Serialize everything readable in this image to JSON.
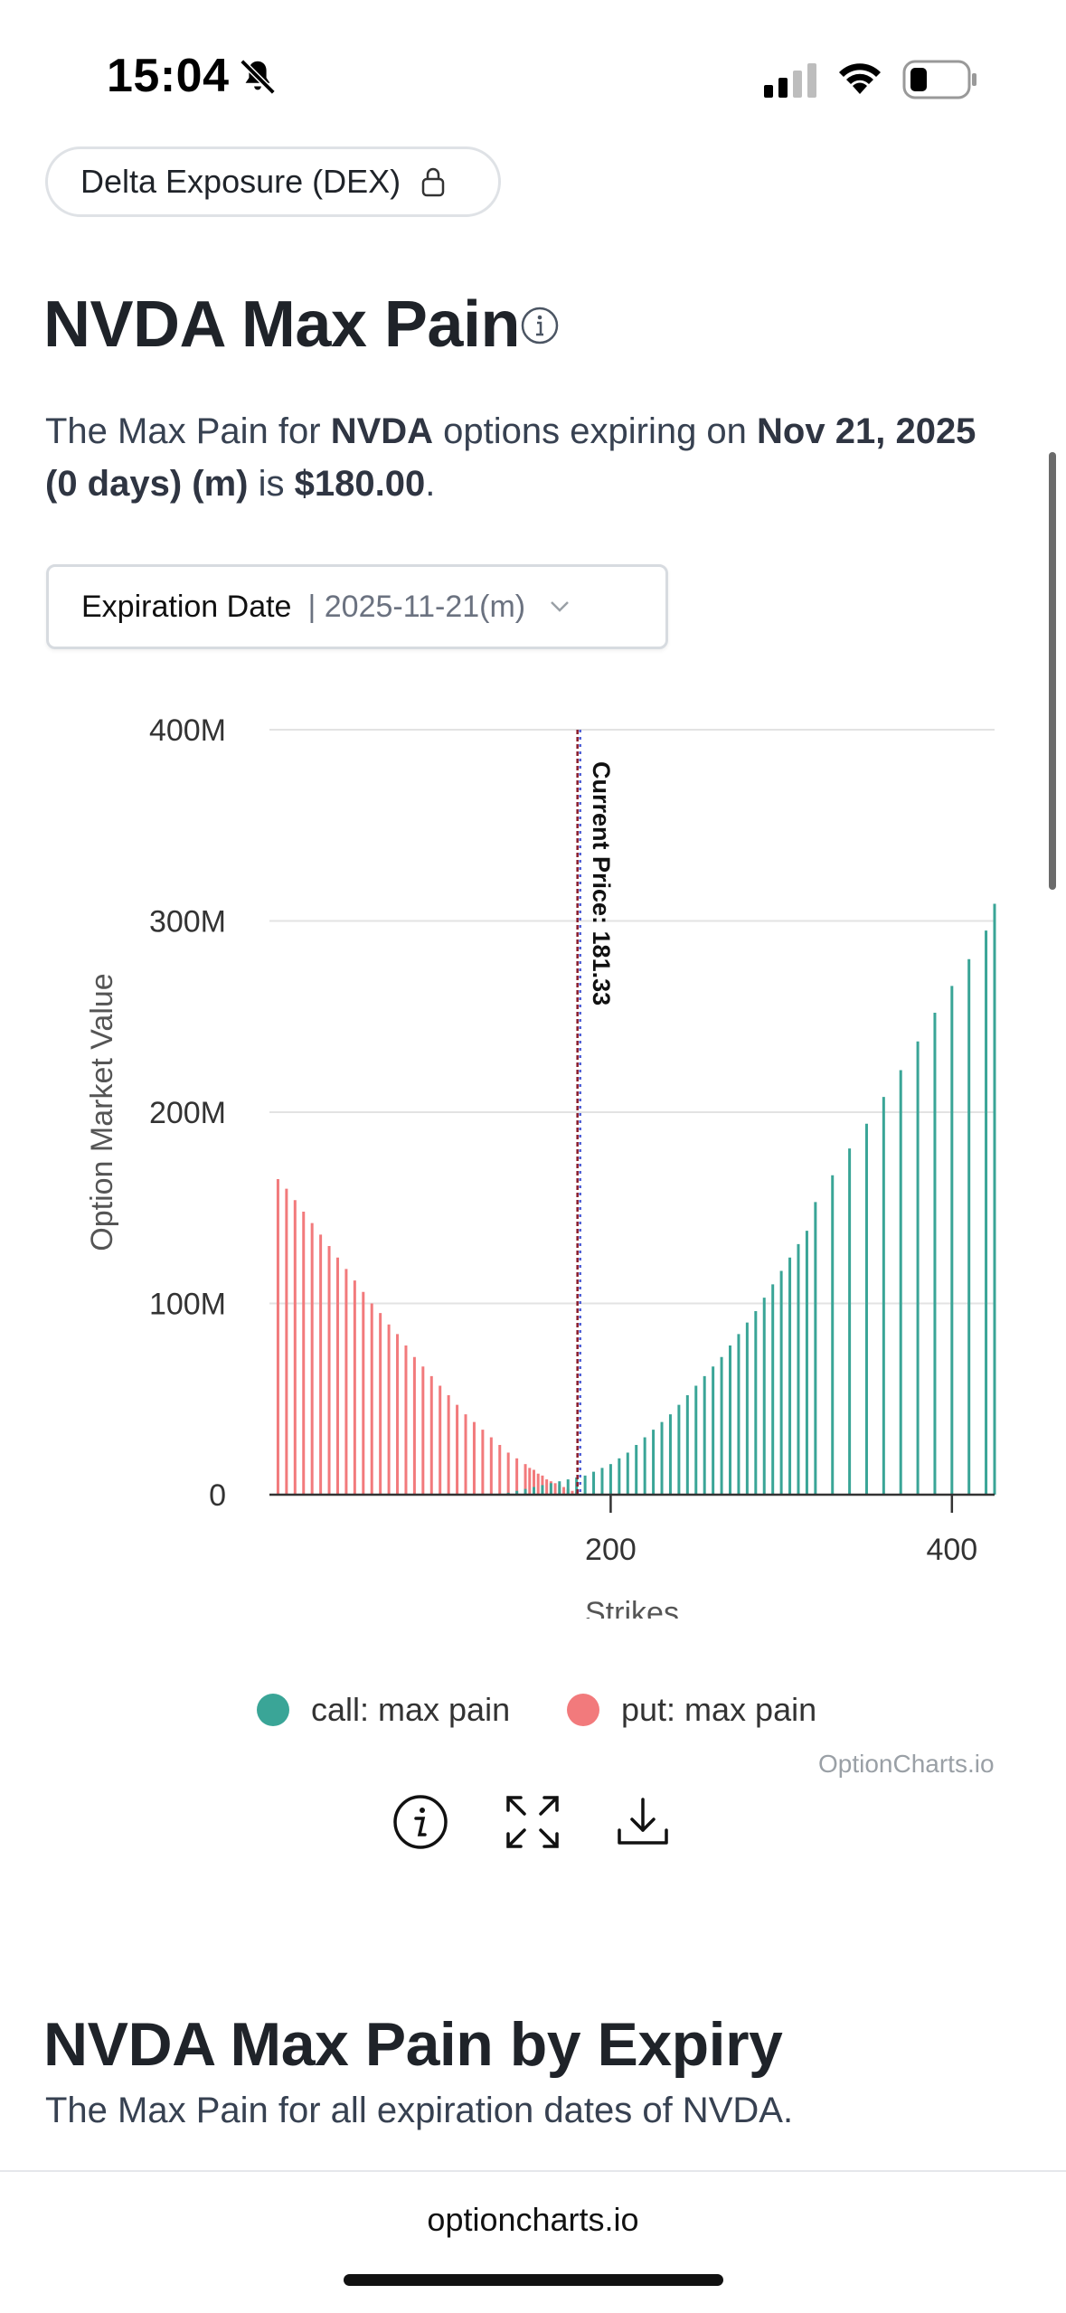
{
  "status_bar": {
    "time": "15:04"
  },
  "pill": {
    "label": "Delta Exposure (DEX)"
  },
  "page": {
    "title": "NVDA Max Pain",
    "desc_prefix": "The Max Pain for ",
    "ticker": "NVDA",
    "desc_mid": " options expiring on ",
    "expiry_text": "Nov 21, 2025 (0 days) (m)",
    "desc_is": " is ",
    "max_pain_value": "$180.00",
    "desc_end": "."
  },
  "expiration_select": {
    "label": "Expiration Date",
    "value": "| 2025-11-21(m)"
  },
  "chart_data": {
    "type": "bar",
    "ylabel": "Option Market Value",
    "xlabel": "Strikes",
    "y_ticks": [
      "0",
      "100M",
      "200M",
      "300M",
      "400M"
    ],
    "x_ticks": [
      "200",
      "400"
    ],
    "ylim": [
      0,
      400
    ],
    "xlim": [
      0,
      425
    ],
    "current_price_label": "Current Price: 181.33",
    "current_price": 181.33,
    "watermark": "OptionCharts.io",
    "legend": [
      {
        "name": "call: max pain",
        "color": "#3aa597"
      },
      {
        "name": "put: max pain",
        "color": "#f27a7c"
      }
    ],
    "put_series": [
      {
        "x": 5,
        "y": 165
      },
      {
        "x": 10,
        "y": 160
      },
      {
        "x": 15,
        "y": 154
      },
      {
        "x": 20,
        "y": 148
      },
      {
        "x": 25,
        "y": 142
      },
      {
        "x": 30,
        "y": 136
      },
      {
        "x": 35,
        "y": 130
      },
      {
        "x": 40,
        "y": 124
      },
      {
        "x": 45,
        "y": 118
      },
      {
        "x": 50,
        "y": 112
      },
      {
        "x": 55,
        "y": 106
      },
      {
        "x": 60,
        "y": 100
      },
      {
        "x": 65,
        "y": 95
      },
      {
        "x": 70,
        "y": 89
      },
      {
        "x": 75,
        "y": 84
      },
      {
        "x": 80,
        "y": 78
      },
      {
        "x": 85,
        "y": 72
      },
      {
        "x": 90,
        "y": 67
      },
      {
        "x": 95,
        "y": 62
      },
      {
        "x": 100,
        "y": 57
      },
      {
        "x": 105,
        "y": 52
      },
      {
        "x": 110,
        "y": 47
      },
      {
        "x": 115,
        "y": 42
      },
      {
        "x": 120,
        "y": 38
      },
      {
        "x": 125,
        "y": 34
      },
      {
        "x": 130,
        "y": 30
      },
      {
        "x": 135,
        "y": 26
      },
      {
        "x": 140,
        "y": 22
      },
      {
        "x": 145,
        "y": 19
      },
      {
        "x": 150,
        "y": 16
      },
      {
        "x": 152.5,
        "y": 14
      },
      {
        "x": 155,
        "y": 13
      },
      {
        "x": 157.5,
        "y": 11
      },
      {
        "x": 160,
        "y": 10
      },
      {
        "x": 162.5,
        "y": 8
      },
      {
        "x": 165,
        "y": 7
      },
      {
        "x": 167.5,
        "y": 6
      },
      {
        "x": 170,
        "y": 5
      },
      {
        "x": 172.5,
        "y": 4
      },
      {
        "x": 175,
        "y": 3
      },
      {
        "x": 177.5,
        "y": 2
      },
      {
        "x": 180,
        "y": 1.5
      }
    ],
    "call_series": [
      {
        "x": 140,
        "y": 1
      },
      {
        "x": 145,
        "y": 2
      },
      {
        "x": 150,
        "y": 3
      },
      {
        "x": 155,
        "y": 4
      },
      {
        "x": 160,
        "y": 5
      },
      {
        "x": 165,
        "y": 6
      },
      {
        "x": 170,
        "y": 7
      },
      {
        "x": 175,
        "y": 8
      },
      {
        "x": 180,
        "y": 9
      },
      {
        "x": 185,
        "y": 10
      },
      {
        "x": 190,
        "y": 12
      },
      {
        "x": 195,
        "y": 14
      },
      {
        "x": 200,
        "y": 16
      },
      {
        "x": 205,
        "y": 19
      },
      {
        "x": 210,
        "y": 22
      },
      {
        "x": 215,
        "y": 26
      },
      {
        "x": 220,
        "y": 30
      },
      {
        "x": 225,
        "y": 34
      },
      {
        "x": 230,
        "y": 38
      },
      {
        "x": 235,
        "y": 42
      },
      {
        "x": 240,
        "y": 47
      },
      {
        "x": 245,
        "y": 52
      },
      {
        "x": 250,
        "y": 57
      },
      {
        "x": 255,
        "y": 62
      },
      {
        "x": 260,
        "y": 67
      },
      {
        "x": 265,
        "y": 72
      },
      {
        "x": 270,
        "y": 78
      },
      {
        "x": 275,
        "y": 84
      },
      {
        "x": 280,
        "y": 90
      },
      {
        "x": 285,
        "y": 96
      },
      {
        "x": 290,
        "y": 103
      },
      {
        "x": 295,
        "y": 110
      },
      {
        "x": 300,
        "y": 117
      },
      {
        "x": 305,
        "y": 124
      },
      {
        "x": 310,
        "y": 131
      },
      {
        "x": 315,
        "y": 138
      },
      {
        "x": 320,
        "y": 153
      },
      {
        "x": 330,
        "y": 167
      },
      {
        "x": 340,
        "y": 181
      },
      {
        "x": 350,
        "y": 194
      },
      {
        "x": 360,
        "y": 208
      },
      {
        "x": 370,
        "y": 222
      },
      {
        "x": 380,
        "y": 237
      },
      {
        "x": 390,
        "y": 252
      },
      {
        "x": 400,
        "y": 266
      },
      {
        "x": 410,
        "y": 280
      },
      {
        "x": 420,
        "y": 295
      },
      {
        "x": 425,
        "y": 309
      }
    ]
  },
  "section2": {
    "title": "NVDA Max Pain by Expiry",
    "subtitle": "The Max Pain for all expiration dates of NVDA."
  },
  "browser": {
    "url": "optioncharts.io"
  }
}
